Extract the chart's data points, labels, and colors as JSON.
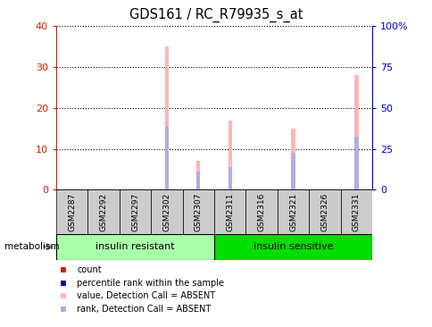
{
  "title": "GDS161 / RC_R79935_s_at",
  "samples": [
    "GSM2287",
    "GSM2292",
    "GSM2297",
    "GSM2302",
    "GSM2307",
    "GSM2311",
    "GSM2316",
    "GSM2321",
    "GSM2326",
    "GSM2331"
  ],
  "pink_values": [
    0,
    0,
    0,
    35,
    7,
    17,
    0,
    15,
    0,
    28
  ],
  "blue_values": [
    0,
    0,
    0,
    15.5,
    4.5,
    5.5,
    0,
    9,
    0,
    13
  ],
  "ylim_left": [
    0,
    40
  ],
  "ylim_right": [
    0,
    100
  ],
  "yticks_left": [
    0,
    10,
    20,
    30,
    40
  ],
  "yticks_right": [
    0,
    25,
    50,
    75,
    100
  ],
  "yticklabels_right": [
    "0",
    "25",
    "50",
    "75",
    "100%"
  ],
  "group1_label": "insulin resistant",
  "group2_label": "insulin sensitive",
  "group1_count": 5,
  "group2_count": 5,
  "group1_color": "#AAFFAA",
  "group2_color": "#00DD00",
  "bar_width": 0.12,
  "pink_color": "#FFB6B6",
  "blue_color": "#AAAAEE",
  "left_tick_color": "#CC2200",
  "right_tick_color": "#0000CC",
  "grid_color": "black",
  "sample_label_box_color": "#CCCCCC",
  "metabolism_label": "metabolism",
  "legend_items": [
    {
      "color": "#CC2200",
      "label": "count"
    },
    {
      "color": "#0000BB",
      "label": "percentile rank within the sample"
    },
    {
      "color": "#FFB6B6",
      "label": "value, Detection Call = ABSENT"
    },
    {
      "color": "#AAAAEE",
      "label": "rank, Detection Call = ABSENT"
    }
  ]
}
